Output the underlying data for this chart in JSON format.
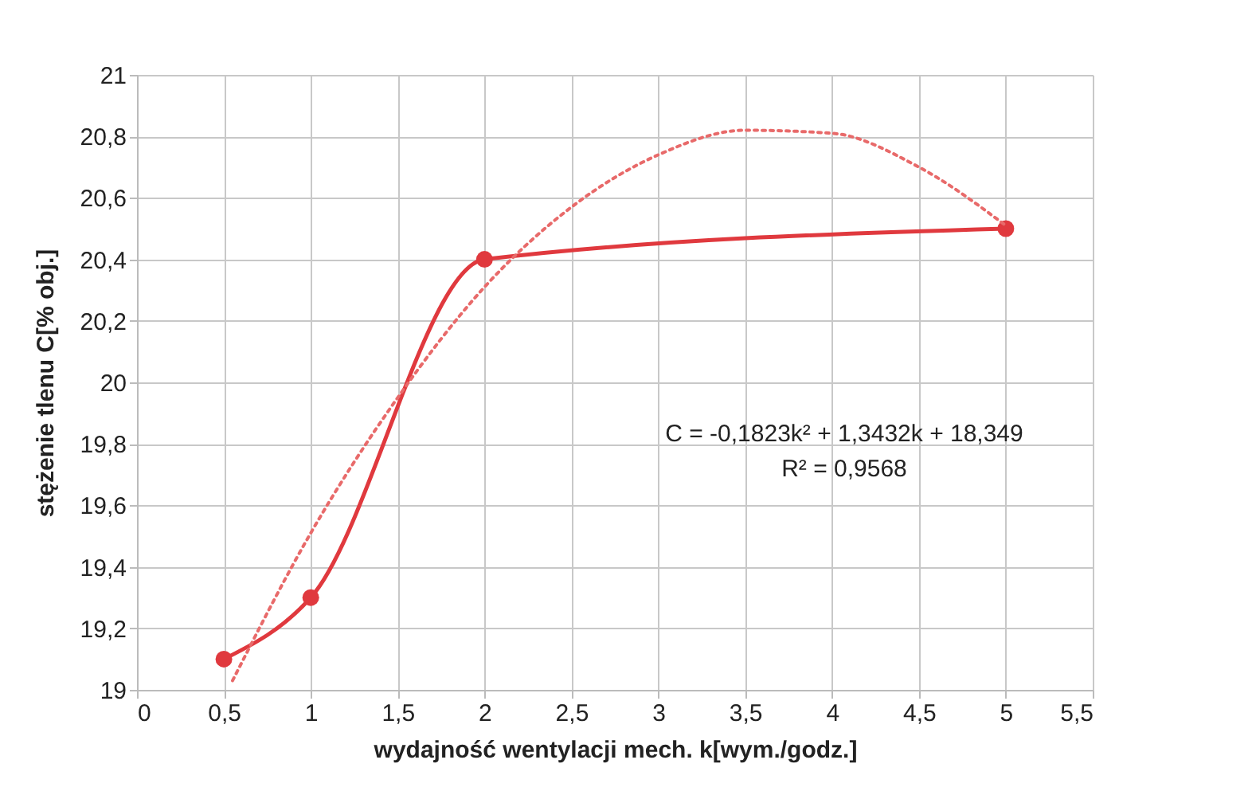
{
  "chart_data": {
    "type": "line",
    "xlabel": "wydajność wentylacji mech. k[wym./godz.]",
    "ylabel": "stężenie tlenu C[% obj.]",
    "xlim": [
      0,
      5.5
    ],
    "xticks": [
      0,
      {
        "value": 0.5,
        "label": "0,5"
      },
      1,
      {
        "value": 1.5,
        "label": "1,5"
      },
      2,
      {
        "value": 2.5,
        "label": "2,5"
      },
      3,
      {
        "value": 3.5,
        "label": "3,5"
      },
      4,
      {
        "value": 4.5,
        "label": "4,5"
      },
      5,
      {
        "value": 5.5,
        "label": "5,5"
      }
    ],
    "ylim": [
      19,
      21
    ],
    "yticks": [
      19,
      {
        "value": 19.2,
        "label": "19,2"
      },
      {
        "value": 19.4,
        "label": "19,4"
      },
      {
        "value": 19.6,
        "label": "19,6"
      },
      {
        "value": 19.8,
        "label": "19,8"
      },
      20,
      {
        "value": 20.2,
        "label": "20,2"
      },
      {
        "value": 20.4,
        "label": "20,4"
      },
      {
        "value": 20.6,
        "label": "20,6"
      },
      {
        "value": 20.8,
        "label": "20,8"
      },
      21
    ],
    "grid": true,
    "marker": "circle",
    "line_style": "solid",
    "series": [
      {
        "color": "#e0393e",
        "x": [
          0.5,
          1,
          2,
          5
        ],
        "values": [
          19.1,
          19.3,
          20.4,
          20.5
        ]
      },
      {
        "type": "line",
        "color": "#e86a6a",
        "line_style": "dotted",
        "marker": "none",
        "x": [
          0.55,
          1,
          1.5,
          2,
          2.5,
          3,
          3.5,
          4,
          4.5,
          5
        ],
        "values": [
          19.03,
          19.51,
          19.95,
          20.31,
          20.57,
          20.74,
          20.82,
          20.81,
          20.7,
          20.51
        ]
      }
    ],
    "annotations": [
      "C = -0,1823k² + 1,3432k + 18,349",
      "R² = 0,9568"
    ]
  }
}
